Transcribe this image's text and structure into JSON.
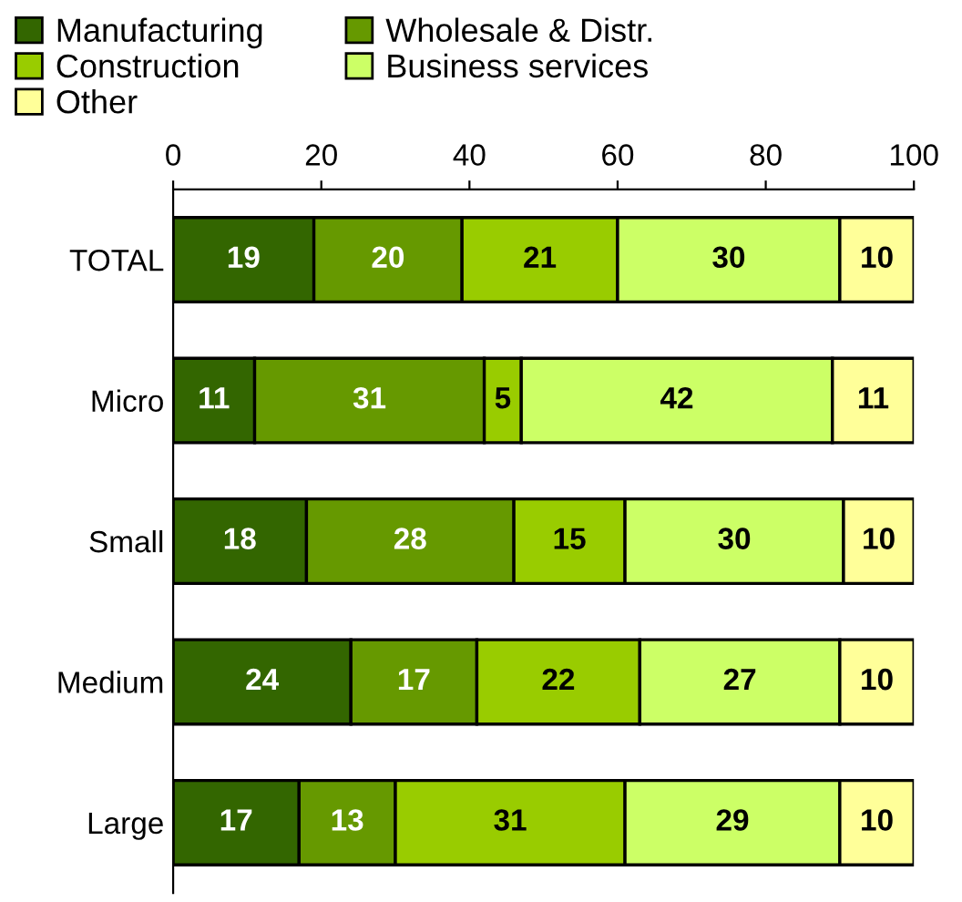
{
  "chart_data": {
    "type": "bar",
    "orientation": "horizontal",
    "stacked": true,
    "categories": [
      "TOTAL",
      "Micro",
      "Small",
      "Medium",
      "Large"
    ],
    "series": [
      {
        "name": "Manufacturing",
        "color": "#336600",
        "values": [
          19,
          11,
          18,
          24,
          17
        ]
      },
      {
        "name": "Wholesale & Distr.",
        "color": "#669900",
        "values": [
          20,
          31,
          28,
          17,
          13
        ]
      },
      {
        "name": "Construction",
        "color": "#99cc00",
        "values": [
          21,
          5,
          15,
          22,
          31
        ]
      },
      {
        "name": "Business services",
        "color": "#ccff66",
        "values": [
          30,
          42,
          29.5,
          27,
          29
        ],
        "value_labels": [
          "30",
          "42",
          "30",
          "27",
          "29"
        ]
      },
      {
        "name": "Other",
        "color": "#ffff99",
        "values": [
          10,
          11,
          9.5,
          10,
          10
        ],
        "value_labels": [
          "10",
          "11",
          "10",
          "10",
          "10"
        ]
      }
    ],
    "xlim": [
      0,
      100
    ],
    "xticks": [
      0,
      20,
      40,
      60,
      80,
      100
    ],
    "data_labels": true,
    "legend": "top",
    "grid": false
  }
}
